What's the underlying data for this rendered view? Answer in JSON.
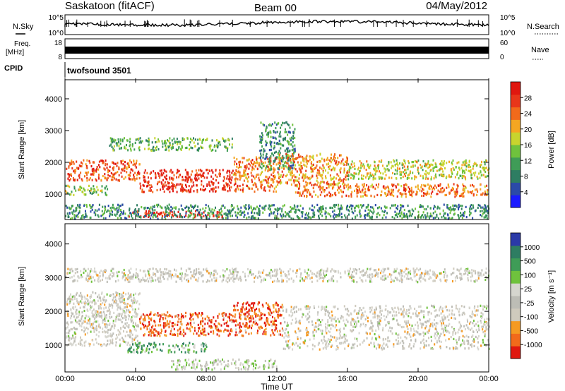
{
  "header": {
    "station": "Saskatoon (fitACF)",
    "beam": "Beam 00",
    "date": "04/May/2012"
  },
  "top_panels": {
    "nsky_label": "N.Sky",
    "nsky_ticks": [
      "10^5",
      "10^0"
    ],
    "nsearch_label": "N.Search",
    "nsearch_ticks": [
      "10^5",
      "10^0"
    ],
    "freq_label": "Freq.",
    "freq_unit": "[MHz]",
    "freq_ticks": [
      "18",
      "8"
    ],
    "nave_label": "Nave",
    "nave_ticks": [
      "60",
      "0"
    ],
    "cpid_label": "CPID",
    "cpid_value": "twofsound 3501"
  },
  "colors": {
    "power_scale": [
      "#1a1aff",
      "#2b4aa8",
      "#2e7d62",
      "#3f9c57",
      "#6fc23d",
      "#c8d42e",
      "#f5a622",
      "#f26a1b",
      "#e8361a",
      "#e0170f"
    ],
    "velocity_scale": [
      "#e0170f",
      "#f26a1b",
      "#f59a22",
      "#cfcabd",
      "#bdbdb6",
      "#d6d6cf",
      "#6fc23d",
      "#3f9c57",
      "#2e7d62",
      "#2b3aa8"
    ]
  },
  "chart_data": [
    {
      "type": "heatmap",
      "name": "power",
      "ylabel": "Slant Range [km]",
      "ylim": [
        200,
        4600
      ],
      "yticks": [
        "4000",
        "3000",
        "2000",
        "1000"
      ],
      "xlim": [
        0,
        24
      ],
      "colorbar_label": "Power [dB]",
      "colorbar_ticks": [
        "28",
        "24",
        "20",
        "16",
        "12",
        "8",
        "4"
      ],
      "scatter_bands": [
        {
          "x": [
            0,
            4.2
          ],
          "y": [
            1450,
            2100
          ],
          "level": 0.8
        },
        {
          "x": [
            0,
            2.5
          ],
          "y": [
            1000,
            1300
          ],
          "level": 0.45
        },
        {
          "x": [
            4.2,
            9.5
          ],
          "y": [
            1100,
            1800
          ],
          "level": 0.92
        },
        {
          "x": [
            3.5,
            9
          ],
          "y": [
            300,
            500
          ],
          "level": 0.9
        },
        {
          "x": [
            2.5,
            9.5
          ],
          "y": [
            2400,
            2800
          ],
          "level": 0.4
        },
        {
          "x": [
            9.5,
            12
          ],
          "y": [
            1100,
            2200
          ],
          "level": 0.75
        },
        {
          "x": [
            11,
            13
          ],
          "y": [
            1800,
            3300
          ],
          "level": 0.3
        },
        {
          "x": [
            12,
            16
          ],
          "y": [
            1300,
            2300
          ],
          "level": 0.7
        },
        {
          "x": [
            13,
            24
          ],
          "y": [
            950,
            1350
          ],
          "level": 0.75
        },
        {
          "x": [
            16,
            24
          ],
          "y": [
            1500,
            2100
          ],
          "level": 0.55
        },
        {
          "x": [
            0,
            24
          ],
          "y": [
            250,
            700
          ],
          "level": 0.3
        }
      ]
    },
    {
      "type": "heatmap",
      "name": "velocity",
      "ylabel": "Slant Range [km]",
      "ylim": [
        200,
        4600
      ],
      "yticks": [
        "4000",
        "3000",
        "2000",
        "1000"
      ],
      "xlim": [
        0,
        24
      ],
      "xlabel": "Time UT",
      "xticks": [
        "00:00",
        "04:00",
        "08:00",
        "12:00",
        "16:00",
        "20:00",
        "00:00"
      ],
      "colorbar_label": "Velocity [m s⁻¹]",
      "colorbar_ticks": [
        "1000",
        "500",
        "100",
        "25",
        "-25",
        "-100",
        "-500",
        "-1000"
      ],
      "scatter_bands": [
        {
          "x": [
            0,
            4.2
          ],
          "y": [
            1000,
            2600
          ],
          "level": 0.45
        },
        {
          "x": [
            4.2,
            9.5
          ],
          "y": [
            1300,
            2000
          ],
          "level": 0.15
        },
        {
          "x": [
            3.5,
            8
          ],
          "y": [
            800,
            1100
          ],
          "level": 0.72
        },
        {
          "x": [
            9.5,
            12.3
          ],
          "y": [
            1300,
            2300
          ],
          "level": 0.15
        },
        {
          "x": [
            12.3,
            24
          ],
          "y": [
            900,
            2200
          ],
          "level": 0.45
        },
        {
          "x": [
            0,
            24
          ],
          "y": [
            2900,
            3300
          ],
          "level": 0.45
        },
        {
          "x": [
            6,
            12
          ],
          "y": [
            300,
            600
          ],
          "level": 0.5
        }
      ]
    }
  ]
}
